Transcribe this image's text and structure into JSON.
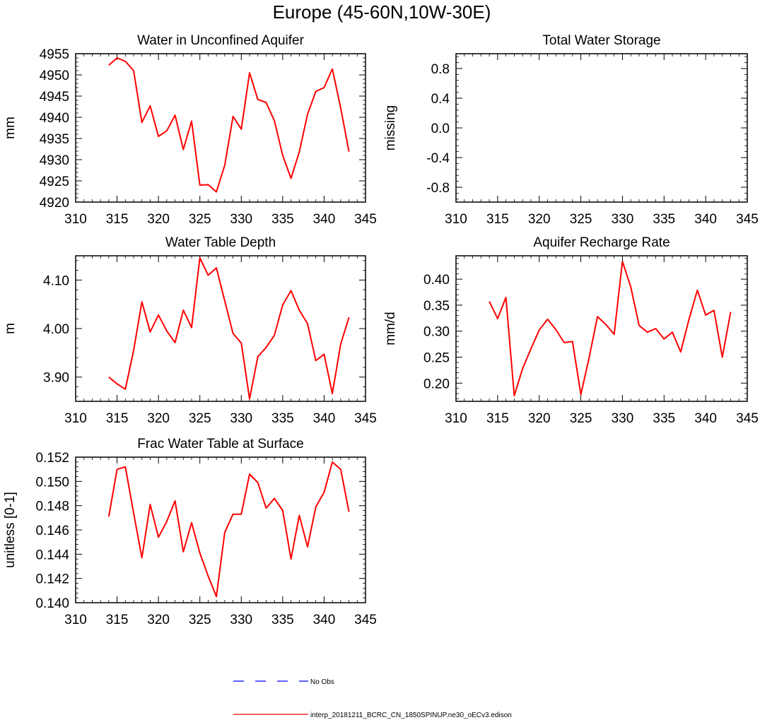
{
  "page": {
    "title": "Europe (45-60N,10W-30E)"
  },
  "legend": {
    "entries": [
      {
        "label": "No Obs",
        "color": "#0000ff",
        "dashed": true
      },
      {
        "label": "interp_20181211_BCRC_CN_1850SPINUP.ne30_oECv3.edison",
        "color": "#ff0000",
        "dashed": false
      }
    ]
  },
  "chart_data": [
    {
      "type": "line",
      "title": "Water in Unconfined Aquifer",
      "ylabel": "mm",
      "xlim": [
        310,
        345
      ],
      "ylim": [
        4920,
        4955
      ],
      "xticks": [
        310,
        315,
        320,
        325,
        330,
        335,
        340,
        345
      ],
      "yticks": [
        4920,
        4925,
        4930,
        4935,
        4940,
        4945,
        4950,
        4955
      ],
      "ytick_labels": [
        "4920",
        "4925",
        "4930",
        "4935",
        "4940",
        "4945",
        "4950",
        "4955"
      ],
      "series": [
        {
          "color": "#ff0000",
          "x": [
            314,
            315,
            316,
            317,
            318,
            319,
            320,
            321,
            322,
            323,
            324,
            325,
            326,
            327,
            328,
            329,
            330,
            331,
            332,
            333,
            334,
            335,
            336,
            337,
            338,
            339,
            340,
            341,
            342,
            343
          ],
          "values": [
            4952.3,
            4954.0,
            4953.2,
            4951.0,
            4938.8,
            4942.7,
            4935.5,
            4936.8,
            4940.5,
            4932.4,
            4939.1,
            4924.0,
            4924.1,
            4922.4,
            4928.7,
            4940.2,
            4937.2,
            4950.5,
            4944.2,
            4943.5,
            4939.2,
            4931.0,
            4925.6,
            4931.8,
            4940.7,
            4946.1,
            4947.0,
            4951.4,
            4942.2,
            4931.9
          ]
        }
      ]
    },
    {
      "type": "line",
      "title": "Total Water Storage",
      "ylabel": "missing",
      "xlim": [
        310,
        345
      ],
      "ylim": [
        -1,
        1
      ],
      "xticks": [
        310,
        315,
        320,
        325,
        330,
        335,
        340,
        345
      ],
      "yticks": [
        -0.8,
        -0.4,
        0.0,
        0.4,
        0.8
      ],
      "ytick_labels": [
        "-0.8",
        "-0.4",
        "0.0",
        "0.4",
        "0.8"
      ],
      "series": []
    },
    {
      "type": "line",
      "title": "Water Table Depth",
      "ylabel": "m",
      "xlim": [
        310,
        345
      ],
      "ylim": [
        3.85,
        4.15
      ],
      "xticks": [
        310,
        315,
        320,
        325,
        330,
        335,
        340,
        345
      ],
      "yticks": [
        3.9,
        4.0,
        4.1
      ],
      "ytick_labels": [
        "3.90",
        "4.00",
        "4.10"
      ],
      "series": [
        {
          "color": "#ff0000",
          "x": [
            314,
            315,
            316,
            317,
            318,
            319,
            320,
            321,
            322,
            323,
            324,
            325,
            326,
            327,
            328,
            329,
            330,
            331,
            332,
            333,
            334,
            335,
            336,
            337,
            338,
            339,
            340,
            341,
            342,
            343
          ],
          "values": [
            3.9,
            3.886,
            3.875,
            3.955,
            4.055,
            3.993,
            4.028,
            3.995,
            3.971,
            4.038,
            4.002,
            4.146,
            4.11,
            4.125,
            4.057,
            3.99,
            3.97,
            3.855,
            3.942,
            3.961,
            3.986,
            4.049,
            4.078,
            4.038,
            4.01,
            3.934,
            3.947,
            3.866,
            3.968,
            4.023
          ]
        }
      ]
    },
    {
      "type": "line",
      "title": "Aquifer Recharge Rate",
      "ylabel": "mm/d",
      "xlim": [
        310,
        345
      ],
      "ylim": [
        0.165,
        0.445
      ],
      "xticks": [
        310,
        315,
        320,
        325,
        330,
        335,
        340,
        345
      ],
      "yticks": [
        0.2,
        0.25,
        0.3,
        0.35,
        0.4
      ],
      "ytick_labels": [
        "0.20",
        "0.25",
        "0.30",
        "0.35",
        "0.40"
      ],
      "series": [
        {
          "color": "#ff0000",
          "x": [
            314,
            315,
            316,
            317,
            318,
            319,
            320,
            321,
            322,
            323,
            324,
            325,
            326,
            327,
            328,
            329,
            330,
            331,
            332,
            333,
            334,
            335,
            336,
            337,
            338,
            339,
            340,
            341,
            342,
            343
          ],
          "values": [
            0.357,
            0.324,
            0.365,
            0.176,
            0.228,
            0.266,
            0.302,
            0.323,
            0.303,
            0.278,
            0.28,
            0.178,
            0.249,
            0.328,
            0.313,
            0.294,
            0.434,
            0.385,
            0.311,
            0.298,
            0.305,
            0.285,
            0.298,
            0.26,
            0.323,
            0.379,
            0.331,
            0.34,
            0.25,
            0.337
          ]
        }
      ]
    },
    {
      "type": "line",
      "title": "Frac Water Table at Surface",
      "ylabel": "unitless [0-1]",
      "xlim": [
        310,
        345
      ],
      "ylim": [
        0.14,
        0.152
      ],
      "xticks": [
        310,
        315,
        320,
        325,
        330,
        335,
        340,
        345
      ],
      "yticks": [
        0.14,
        0.142,
        0.144,
        0.146,
        0.148,
        0.15,
        0.152
      ],
      "ytick_labels": [
        "0.140",
        "0.142",
        "0.144",
        "0.146",
        "0.148",
        "0.150",
        "0.152"
      ],
      "series": [
        {
          "color": "#ff0000",
          "x": [
            314,
            315,
            316,
            317,
            318,
            319,
            320,
            321,
            322,
            323,
            324,
            325,
            326,
            327,
            328,
            329,
            330,
            331,
            332,
            333,
            334,
            335,
            336,
            337,
            338,
            339,
            340,
            341,
            342,
            343
          ],
          "values": [
            0.1471,
            0.151,
            0.1512,
            0.1474,
            0.1437,
            0.1481,
            0.1454,
            0.1467,
            0.1484,
            0.1442,
            0.1466,
            0.1441,
            0.1422,
            0.1405,
            0.1458,
            0.1473,
            0.1473,
            0.1506,
            0.1499,
            0.1478,
            0.1486,
            0.1476,
            0.1436,
            0.1472,
            0.1446,
            0.1479,
            0.1491,
            0.1516,
            0.151,
            0.1475
          ]
        }
      ]
    }
  ]
}
